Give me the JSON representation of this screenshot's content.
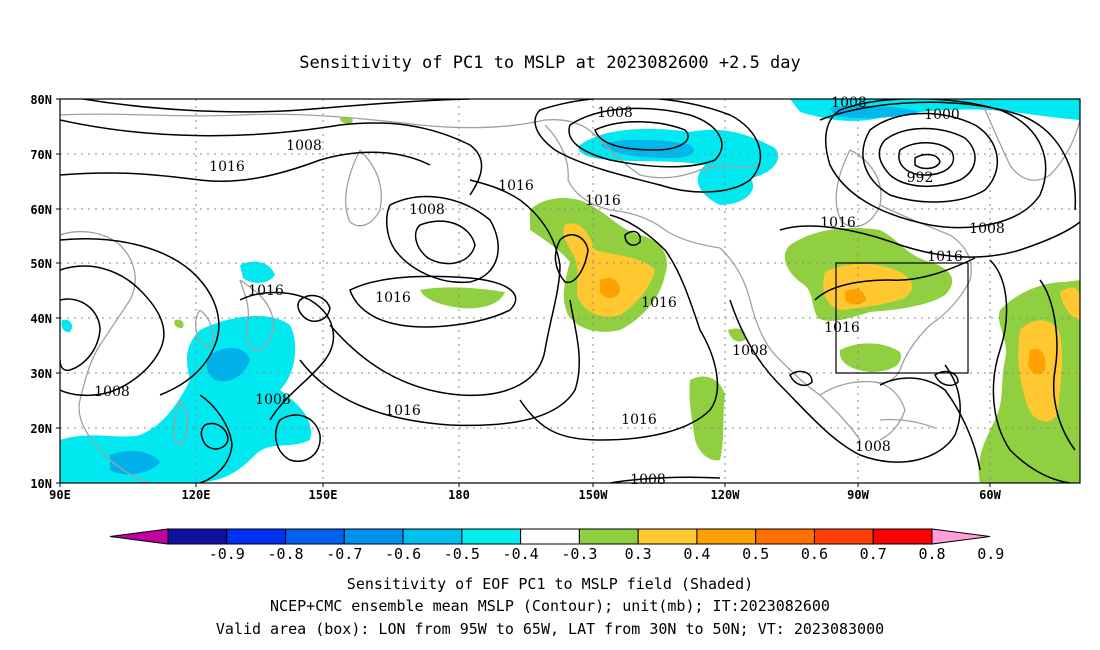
{
  "title": "Sensitivity of PC1 to MSLP at 2023082600 +2.5 day",
  "axes": {
    "lat_labels": [
      "80N",
      "70N",
      "60N",
      "50N",
      "40N",
      "30N",
      "20N",
      "10N"
    ],
    "lon_labels": [
      "90E",
      "120E",
      "150E",
      "180",
      "150W",
      "120W",
      "90W",
      "60W"
    ]
  },
  "colorbar": {
    "labels": [
      "-0.9",
      "-0.8",
      "-0.7",
      "-0.6",
      "-0.5",
      "-0.4",
      "-0.3",
      "0.3",
      "0.4",
      "0.5",
      "0.6",
      "0.7",
      "0.8",
      "0.9"
    ],
    "colors": [
      "#c000a0",
      "#1010a0",
      "#0030f0",
      "#0060f0",
      "#0090f0",
      "#00c0f0",
      "#00f0f0",
      "#ffffff",
      "#90d040",
      "#ffc830",
      "#ffa000",
      "#ff7000",
      "#ff4000",
      "#ff0000",
      "#ff9ed8"
    ]
  },
  "contour_labels": [
    {
      "text": "1008"
    },
    {
      "text": "1016"
    },
    {
      "text": "1016"
    },
    {
      "text": "1008"
    },
    {
      "text": "1008"
    },
    {
      "text": "1016"
    },
    {
      "text": "1016"
    },
    {
      "text": "1016"
    },
    {
      "text": "1016"
    },
    {
      "text": "1016"
    },
    {
      "text": "1008"
    },
    {
      "text": "1008"
    },
    {
      "text": "1000"
    },
    {
      "text": "992"
    },
    {
      "text": "1008"
    },
    {
      "text": "1016"
    },
    {
      "text": "1016"
    },
    {
      "text": "1008"
    },
    {
      "text": "1016"
    },
    {
      "text": "1008"
    },
    {
      "text": "1008"
    },
    {
      "text": "1016"
    },
    {
      "text": "1008"
    }
  ],
  "valid_box": {
    "lon_from": "95W",
    "lon_to": "65W",
    "lat_from": "30N",
    "lat_to": "50N"
  },
  "captions": {
    "line1": "Sensitivity of EOF PC1 to MSLP field (Shaded)",
    "line2": "NCEP+CMC ensemble mean MSLP (Contour); unit(mb); IT:2023082600",
    "line3": "Valid area (box): LON from 95W to 65W, LAT from 30N to 50N; VT: 2023083000"
  }
}
